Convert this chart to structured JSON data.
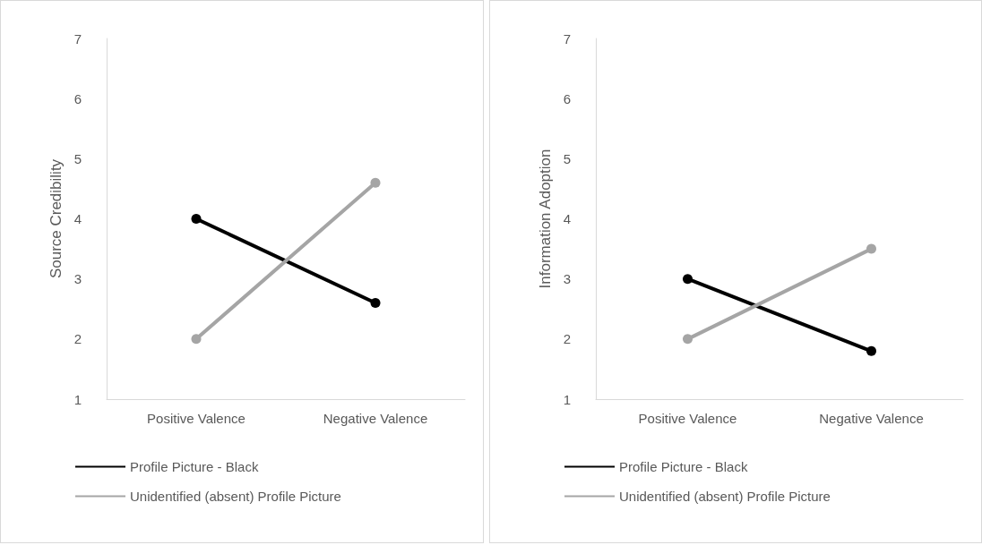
{
  "chart_data": [
    {
      "type": "line",
      "ylabel": "Source Credibility",
      "categories": [
        "Positive Valence",
        "Negative Valence"
      ],
      "series": [
        {
          "name": "Profile Picture - Black",
          "color": "#000000",
          "values": [
            4.0,
            2.6
          ]
        },
        {
          "name": "Unidentified (absent) Profile Picture",
          "color": "#a5a5a5",
          "values": [
            2.0,
            4.6
          ]
        }
      ],
      "ylim": [
        1,
        7
      ],
      "yticks": [
        1,
        2,
        3,
        4,
        5,
        6,
        7
      ],
      "grid": false,
      "legend": "bottom",
      "marker": "circle",
      "line_style": "solid"
    },
    {
      "type": "line",
      "ylabel": "Information Adoption",
      "categories": [
        "Positive Valence",
        "Negative Valence"
      ],
      "series": [
        {
          "name": "Profile Picture - Black",
          "color": "#000000",
          "values": [
            3.0,
            1.8
          ]
        },
        {
          "name": "Unidentified (absent) Profile Picture",
          "color": "#a5a5a5",
          "values": [
            2.0,
            3.5
          ]
        }
      ],
      "ylim": [
        1,
        7
      ],
      "yticks": [
        1,
        2,
        3,
        4,
        5,
        6,
        7
      ],
      "grid": false,
      "legend": "bottom",
      "marker": "circle",
      "line_style": "solid"
    }
  ]
}
